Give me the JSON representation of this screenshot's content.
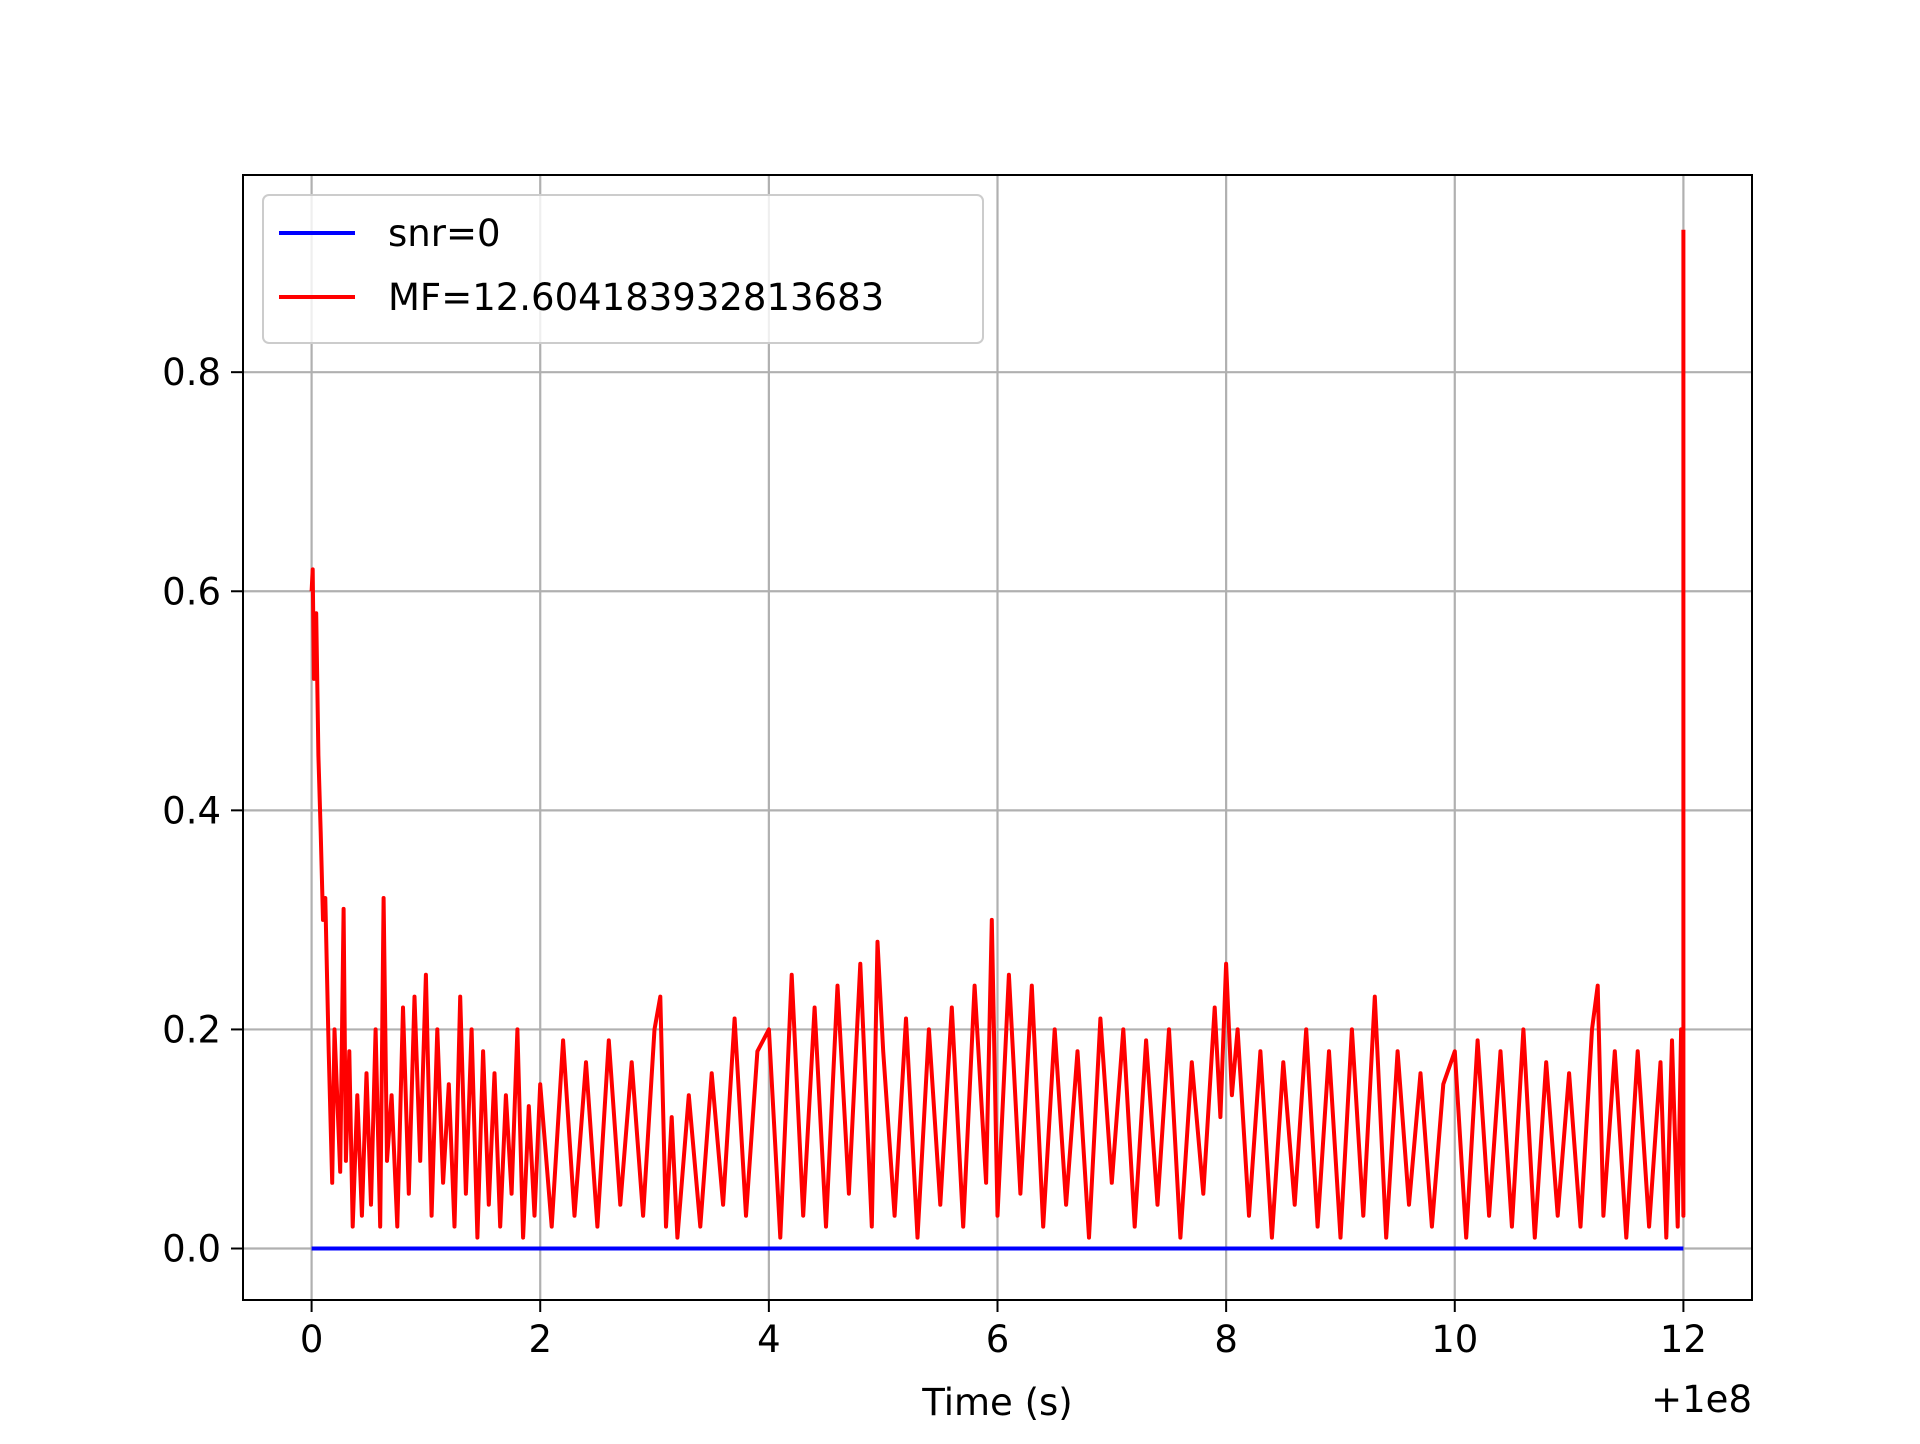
{
  "chart_data": {
    "type": "line",
    "title": "",
    "xlabel": "Time (s)",
    "ylabel": "",
    "x_offset_label": "+1e8",
    "xlim": [
      -0.6,
      12.6
    ],
    "ylim": [
      -0.047,
      0.98
    ],
    "x_ticks": [
      {
        "value": 0,
        "label": "0"
      },
      {
        "value": 2,
        "label": "2"
      },
      {
        "value": 4,
        "label": "4"
      },
      {
        "value": 6,
        "label": "6"
      },
      {
        "value": 8,
        "label": "8"
      },
      {
        "value": 10,
        "label": "10"
      },
      {
        "value": 12,
        "label": "12"
      }
    ],
    "y_ticks": [
      {
        "value": 0.0,
        "label": "0.0"
      },
      {
        "value": 0.2,
        "label": "0.2"
      },
      {
        "value": 0.4,
        "label": "0.4"
      },
      {
        "value": 0.6,
        "label": "0.6"
      },
      {
        "value": 0.8,
        "label": "0.8"
      }
    ],
    "grid": true,
    "legend_position": "upper-left",
    "series": [
      {
        "name": "snr=0",
        "color": "#0000ff",
        "x": [
          0,
          12
        ],
        "y": [
          0,
          0
        ]
      },
      {
        "name": "MF=12.604183932813683",
        "color": "#ff0000",
        "x": [
          0,
          0.01,
          0.02,
          0.04,
          0.06,
          0.08,
          0.1,
          0.12,
          0.15,
          0.18,
          0.2,
          0.22,
          0.25,
          0.28,
          0.3,
          0.33,
          0.36,
          0.4,
          0.44,
          0.48,
          0.52,
          0.56,
          0.6,
          0.63,
          0.66,
          0.7,
          0.75,
          0.8,
          0.85,
          0.9,
          0.95,
          1.0,
          1.05,
          1.1,
          1.15,
          1.2,
          1.25,
          1.3,
          1.35,
          1.4,
          1.45,
          1.5,
          1.55,
          1.6,
          1.65,
          1.7,
          1.75,
          1.8,
          1.85,
          1.9,
          1.95,
          2.0,
          2.1,
          2.2,
          2.3,
          2.4,
          2.5,
          2.6,
          2.7,
          2.8,
          2.9,
          3.0,
          3.05,
          3.1,
          3.15,
          3.2,
          3.3,
          3.4,
          3.5,
          3.6,
          3.7,
          3.8,
          3.9,
          4.0,
          4.1,
          4.2,
          4.3,
          4.4,
          4.5,
          4.6,
          4.7,
          4.8,
          4.9,
          4.95,
          5.0,
          5.1,
          5.2,
          5.3,
          5.4,
          5.5,
          5.6,
          5.7,
          5.8,
          5.9,
          5.95,
          6.0,
          6.1,
          6.2,
          6.3,
          6.4,
          6.5,
          6.6,
          6.7,
          6.8,
          6.9,
          7.0,
          7.1,
          7.2,
          7.3,
          7.4,
          7.5,
          7.6,
          7.7,
          7.8,
          7.9,
          7.95,
          8.0,
          8.05,
          8.1,
          8.2,
          8.3,
          8.4,
          8.5,
          8.6,
          8.7,
          8.8,
          8.9,
          9.0,
          9.1,
          9.2,
          9.3,
          9.4,
          9.5,
          9.6,
          9.7,
          9.8,
          9.9,
          10.0,
          10.1,
          10.2,
          10.3,
          10.4,
          10.5,
          10.6,
          10.7,
          10.8,
          10.9,
          11.0,
          11.1,
          11.2,
          11.25,
          11.3,
          11.4,
          11.5,
          11.6,
          11.7,
          11.8,
          11.85,
          11.9,
          11.95,
          11.98,
          12.0,
          12.0
        ],
        "y": [
          0.6,
          0.62,
          0.52,
          0.58,
          0.45,
          0.38,
          0.3,
          0.32,
          0.18,
          0.06,
          0.2,
          0.15,
          0.07,
          0.31,
          0.08,
          0.18,
          0.02,
          0.14,
          0.03,
          0.16,
          0.04,
          0.2,
          0.02,
          0.32,
          0.08,
          0.14,
          0.02,
          0.22,
          0.05,
          0.23,
          0.08,
          0.25,
          0.03,
          0.2,
          0.06,
          0.15,
          0.02,
          0.23,
          0.05,
          0.2,
          0.01,
          0.18,
          0.04,
          0.16,
          0.02,
          0.14,
          0.05,
          0.2,
          0.01,
          0.13,
          0.03,
          0.15,
          0.02,
          0.19,
          0.03,
          0.17,
          0.02,
          0.19,
          0.04,
          0.17,
          0.03,
          0.2,
          0.23,
          0.02,
          0.12,
          0.01,
          0.14,
          0.02,
          0.16,
          0.04,
          0.21,
          0.03,
          0.18,
          0.2,
          0.01,
          0.25,
          0.03,
          0.22,
          0.02,
          0.24,
          0.05,
          0.26,
          0.02,
          0.28,
          0.18,
          0.03,
          0.21,
          0.01,
          0.2,
          0.04,
          0.22,
          0.02,
          0.24,
          0.06,
          0.3,
          0.03,
          0.25,
          0.05,
          0.24,
          0.02,
          0.2,
          0.04,
          0.18,
          0.01,
          0.21,
          0.06,
          0.2,
          0.02,
          0.19,
          0.04,
          0.2,
          0.01,
          0.17,
          0.05,
          0.22,
          0.12,
          0.26,
          0.14,
          0.2,
          0.03,
          0.18,
          0.01,
          0.17,
          0.04,
          0.2,
          0.02,
          0.18,
          0.01,
          0.2,
          0.03,
          0.23,
          0.01,
          0.18,
          0.04,
          0.16,
          0.02,
          0.15,
          0.18,
          0.01,
          0.19,
          0.03,
          0.18,
          0.02,
          0.2,
          0.01,
          0.17,
          0.03,
          0.16,
          0.02,
          0.2,
          0.24,
          0.03,
          0.18,
          0.01,
          0.18,
          0.02,
          0.17,
          0.01,
          0.19,
          0.02,
          0.2,
          0.03,
          0.93
        ]
      }
    ]
  }
}
